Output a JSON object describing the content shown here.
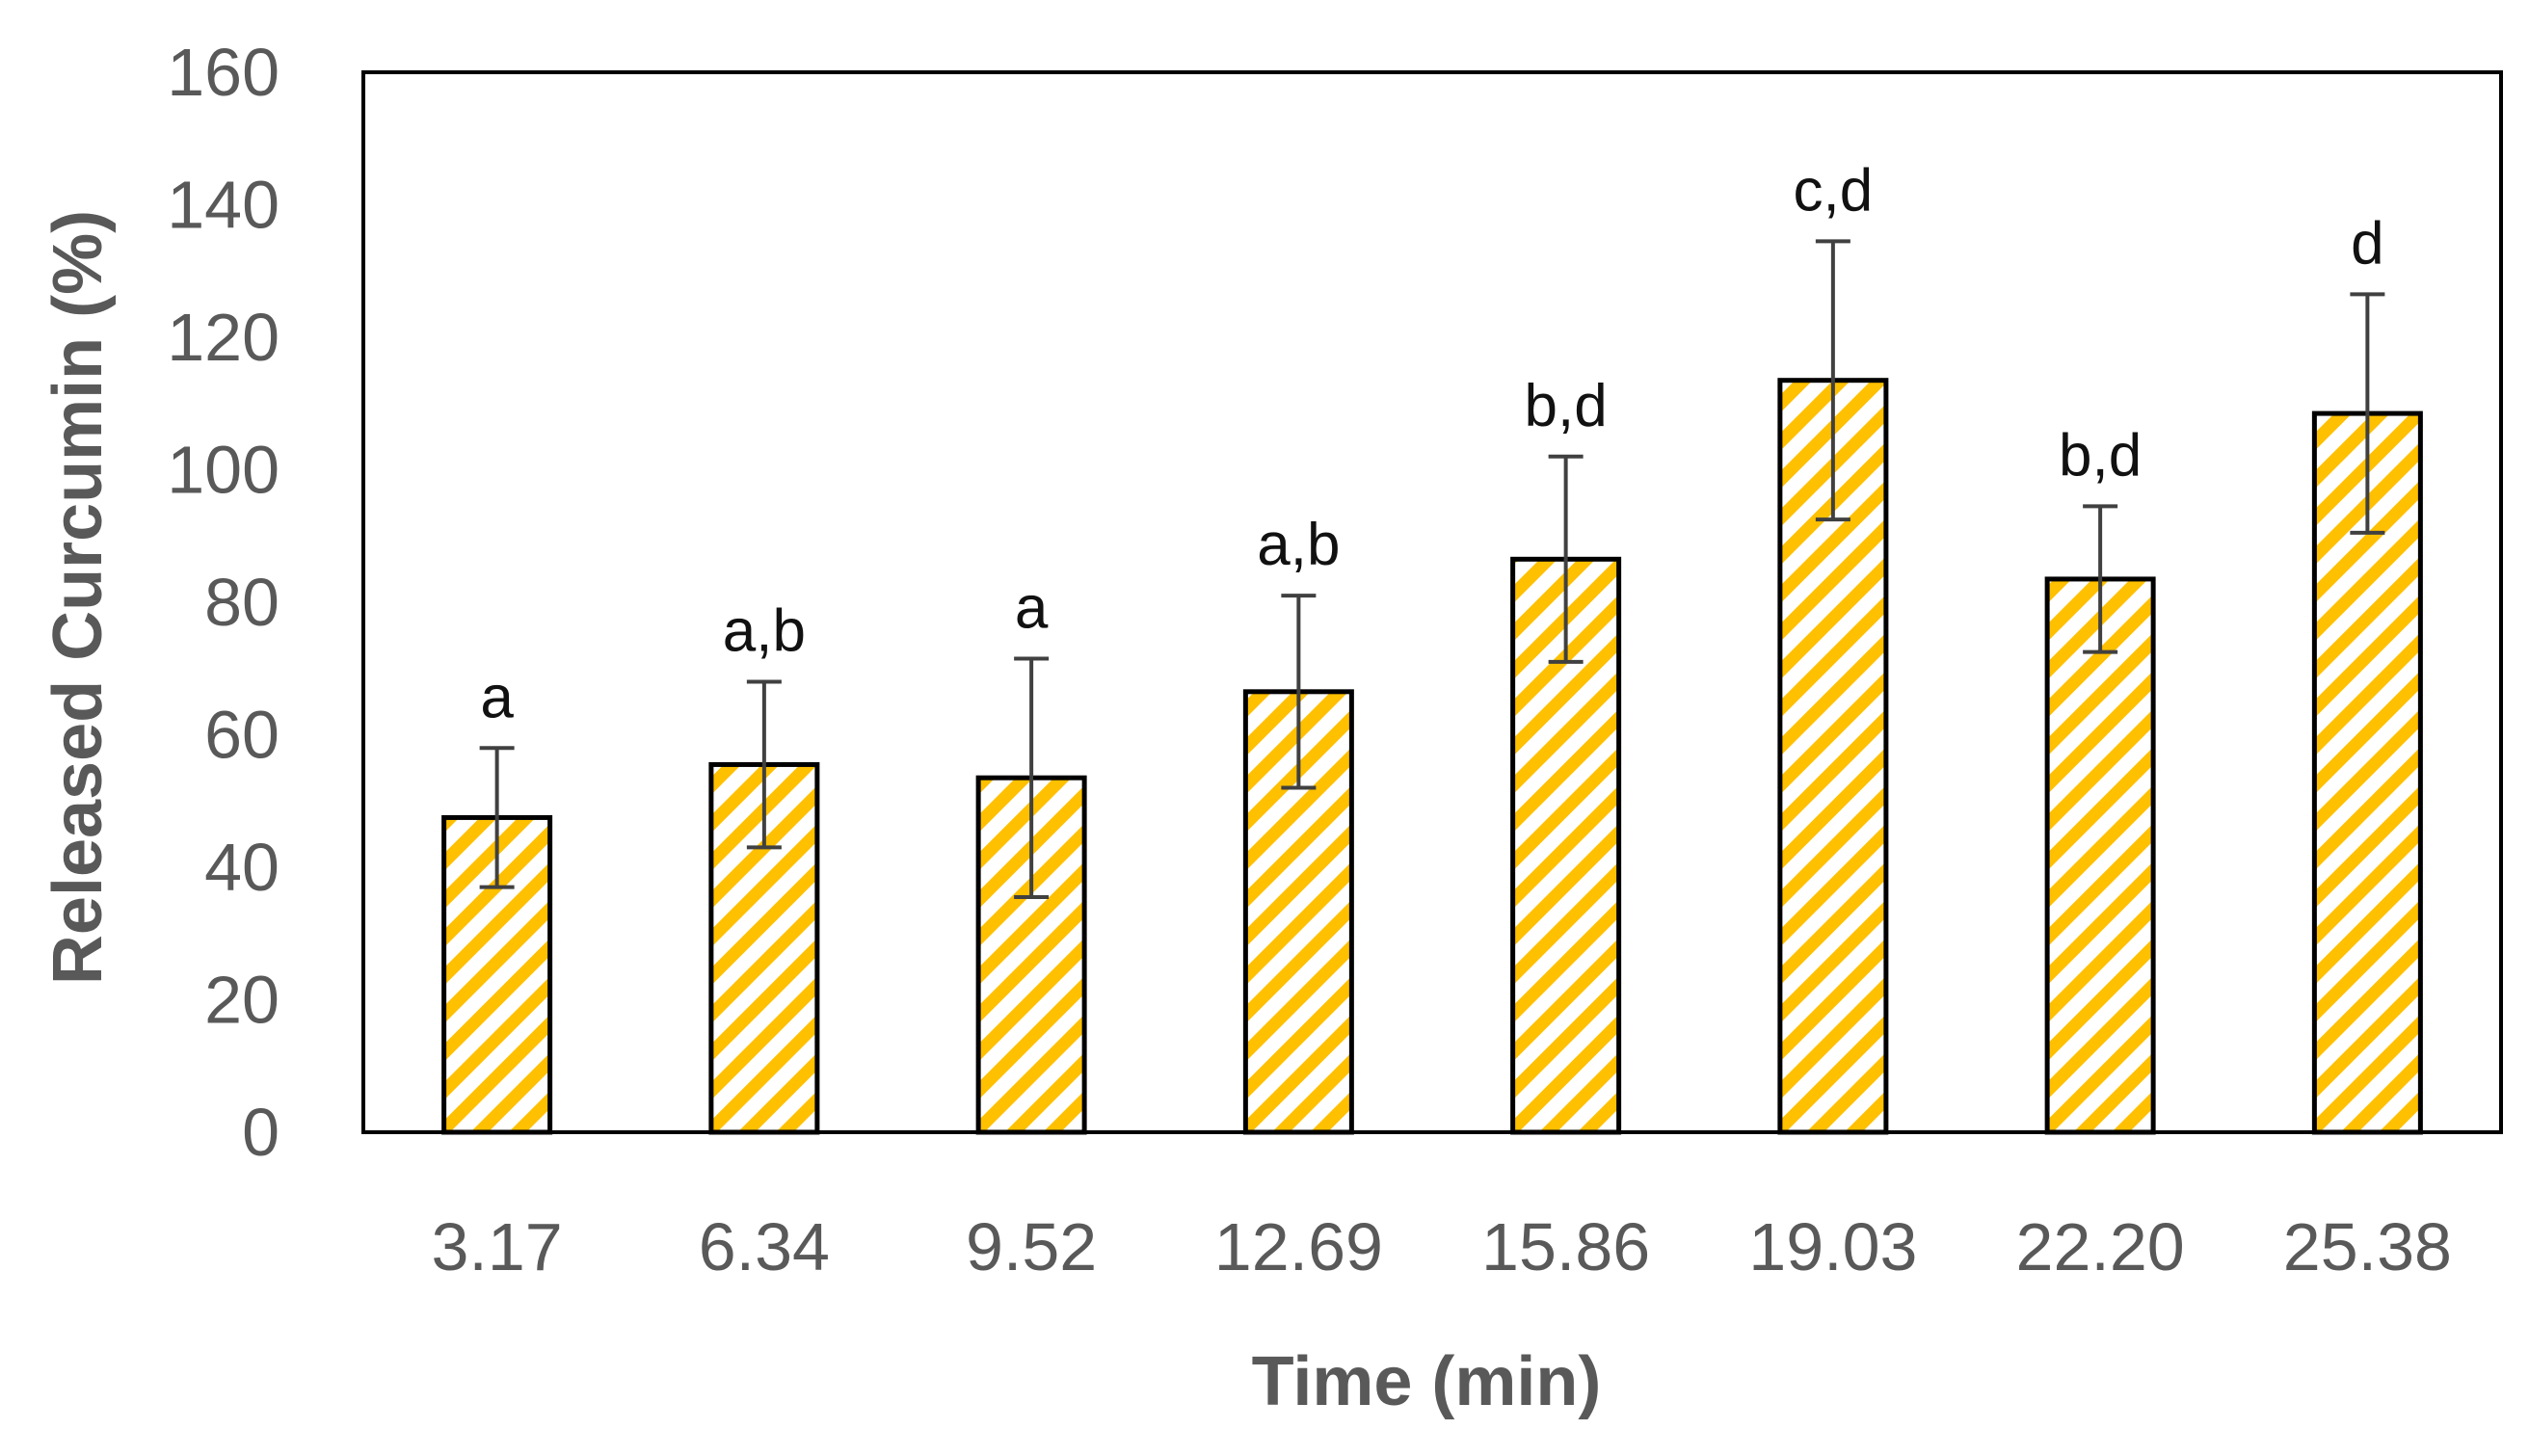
{
  "chart_data": {
    "type": "bar",
    "title": "",
    "xlabel": "Time (min)",
    "ylabel": "Released Curcumin (%)",
    "ylim": [
      0,
      160
    ],
    "yticks": [
      0,
      20,
      40,
      60,
      80,
      100,
      120,
      140,
      160
    ],
    "grid": false,
    "categories": [
      "3.17",
      "6.34",
      "9.52",
      "12.69",
      "15.86",
      "19.03",
      "22.20",
      "25.38"
    ],
    "values": [
      47.5,
      55.5,
      53.5,
      66.5,
      86.5,
      113.5,
      83.5,
      108.5
    ],
    "error": [
      10.5,
      12.5,
      18,
      14.5,
      15.5,
      21,
      11,
      18
    ],
    "significance_labels": [
      "a",
      "a,b",
      "a",
      "a,b",
      "b,d",
      "c,d",
      "b,d",
      "d"
    ],
    "colors": {
      "hatch": "#ffc000",
      "bar_background": "#ffffff",
      "bar_outline": "#000000",
      "error_bar": "#404040",
      "tick_text": "#595959",
      "frame": "#000000"
    }
  }
}
